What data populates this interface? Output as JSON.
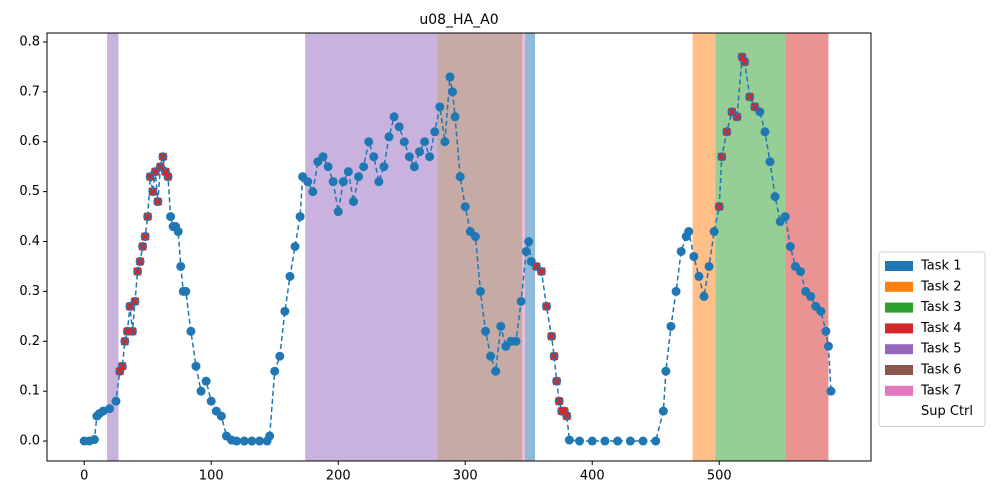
{
  "chart_data": {
    "type": "line",
    "title": "u08_HA_A0",
    "xlim": [
      -29.3,
      619.5
    ],
    "ylim": [
      -0.04,
      0.818
    ],
    "xticks": [
      0,
      100,
      200,
      300,
      400,
      500
    ],
    "yticks": [
      {
        "value": 0,
        "label": "0.0"
      },
      0.1,
      0.2,
      0.3,
      0.4,
      0.5,
      0.6,
      0.7,
      0.8
    ],
    "tasks": [
      {
        "name": "Task 1",
        "color": "#1f77b4",
        "spans": [
          [
            347,
            355
          ]
        ]
      },
      {
        "name": "Task 2",
        "color": "#ff7f0e",
        "spans": [
          [
            479,
            497
          ]
        ]
      },
      {
        "name": "Task 3",
        "color": "#2ca02c",
        "spans": [
          [
            497,
            552
          ]
        ]
      },
      {
        "name": "Task 4",
        "color": "#d62728",
        "spans": [
          [
            552,
            586
          ]
        ]
      },
      {
        "name": "Task 5",
        "color": "#9467bd",
        "spans": [
          [
            18,
            27
          ],
          [
            174,
            278
          ]
        ]
      },
      {
        "name": "Task 6",
        "color": "#8c564b",
        "spans": [
          [
            278,
            345
          ]
        ]
      },
      {
        "name": "Task 7",
        "color": "#e377c2",
        "spans": [
          [
            345,
            347
          ]
        ]
      },
      {
        "name": "Sup Ctrl",
        "color": "#ffffff",
        "spans": []
      }
    ],
    "series": [
      {
        "color": "#1f77b4",
        "marker": "o",
        "x": [
          0,
          4,
          8,
          10,
          12,
          15,
          20,
          25,
          28,
          30,
          32,
          34,
          36,
          38,
          40,
          42,
          44,
          46,
          48,
          50,
          52,
          54,
          56,
          58,
          60,
          62,
          64,
          66,
          68,
          70,
          72,
          74,
          76,
          78,
          80,
          84,
          88,
          92,
          96,
          100,
          104,
          108,
          112,
          116,
          120,
          126,
          132,
          138,
          144,
          146,
          150,
          154,
          158,
          162,
          166,
          170,
          172,
          176,
          180,
          184,
          188,
          192,
          196,
          200,
          204,
          208,
          212,
          216,
          220,
          224,
          228,
          232,
          236,
          240,
          244,
          248,
          252,
          256,
          260,
          264,
          268,
          272,
          276,
          280,
          284,
          288,
          290,
          292,
          296,
          300,
          304,
          308,
          312,
          316,
          320,
          324,
          328,
          332,
          336,
          340,
          344,
          348,
          350,
          352,
          356,
          360,
          364,
          368,
          370,
          372,
          374,
          376,
          378,
          380,
          382,
          390,
          400,
          410,
          420,
          430,
          440,
          450,
          456,
          458,
          462,
          466,
          470,
          474,
          476,
          480,
          484,
          488,
          492,
          496,
          500,
          502,
          506,
          510,
          514,
          518,
          520,
          524,
          528,
          532,
          536,
          540,
          544,
          548,
          552,
          556,
          560,
          564,
          568,
          572,
          576,
          580,
          584,
          586,
          588
        ],
        "values": [
          0,
          0,
          0.003,
          0.05,
          0.055,
          0.06,
          0.065,
          0.08,
          0.14,
          0.15,
          0.2,
          0.22,
          0.27,
          0.22,
          0.28,
          0.34,
          0.36,
          0.39,
          0.41,
          0.45,
          0.53,
          0.5,
          0.54,
          0.48,
          0.55,
          0.57,
          0.54,
          0.53,
          0.45,
          0.43,
          0.43,
          0.42,
          0.35,
          0.3,
          0.3,
          0.22,
          0.15,
          0.1,
          0.12,
          0.08,
          0.06,
          0.05,
          0.01,
          0.002,
          0,
          0,
          0,
          0,
          0,
          0.01,
          0.14,
          0.17,
          0.26,
          0.33,
          0.39,
          0.45,
          0.53,
          0.52,
          0.5,
          0.56,
          0.57,
          0.55,
          0.52,
          0.46,
          0.52,
          0.54,
          0.48,
          0.53,
          0.55,
          0.6,
          0.57,
          0.52,
          0.55,
          0.61,
          0.65,
          0.63,
          0.6,
          0.57,
          0.55,
          0.58,
          0.6,
          0.57,
          0.62,
          0.67,
          0.6,
          0.73,
          0.7,
          0.65,
          0.53,
          0.47,
          0.42,
          0.41,
          0.3,
          0.22,
          0.17,
          0.14,
          0.23,
          0.19,
          0.2,
          0.2,
          0.28,
          0.38,
          0.4,
          0.36,
          0.35,
          0.34,
          0.27,
          0.21,
          0.17,
          0.12,
          0.08,
          0.06,
          0.06,
          0.05,
          0.002,
          0,
          0,
          0,
          0,
          0,
          0,
          0,
          0.06,
          0.14,
          0.23,
          0.3,
          0.38,
          0.41,
          0.42,
          0.37,
          0.33,
          0.29,
          0.35,
          0.42,
          0.47,
          0.57,
          0.62,
          0.66,
          0.65,
          0.77,
          0.76,
          0.69,
          0.67,
          0.66,
          0.62,
          0.56,
          0.49,
          0.44,
          0.45,
          0.39,
          0.35,
          0.34,
          0.3,
          0.29,
          0.27,
          0.26,
          0.22,
          0.19,
          0.1
        ]
      },
      {
        "color": "#d62728",
        "marker": "x",
        "x": [
          28,
          30,
          32,
          34,
          36,
          38,
          40,
          42,
          44,
          46,
          48,
          50,
          52,
          54,
          56,
          58,
          60,
          62,
          64,
          66,
          356,
          360,
          364,
          368,
          370,
          372,
          374,
          376,
          378,
          380,
          500,
          502,
          506,
          510,
          514,
          518,
          520,
          524,
          528
        ],
        "values": [
          0.14,
          0.15,
          0.2,
          0.22,
          0.27,
          0.22,
          0.28,
          0.34,
          0.36,
          0.39,
          0.41,
          0.45,
          0.53,
          0.5,
          0.54,
          0.48,
          0.55,
          0.57,
          0.54,
          0.53,
          0.35,
          0.34,
          0.27,
          0.21,
          0.17,
          0.12,
          0.08,
          0.06,
          0.06,
          0.05,
          0.47,
          0.57,
          0.62,
          0.66,
          0.65,
          0.77,
          0.76,
          0.69,
          0.67
        ]
      }
    ]
  }
}
